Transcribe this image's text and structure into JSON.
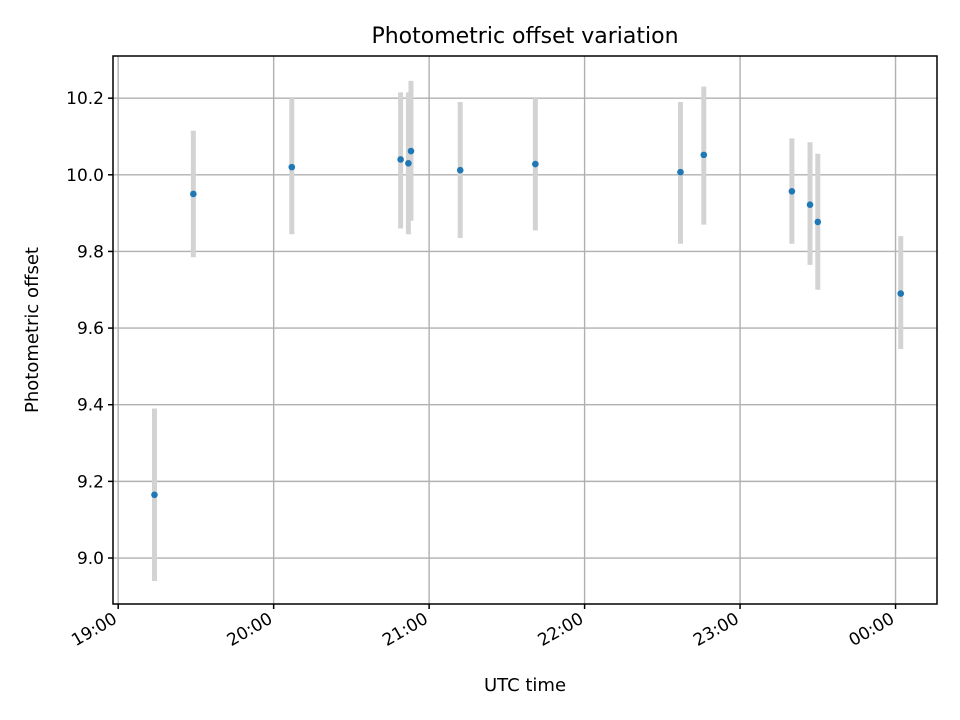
{
  "chart_data": {
    "type": "scatter",
    "title": "Photometric offset variation",
    "xlabel": "UTC time",
    "ylabel": "Photometric offset",
    "x_ticks": [
      {
        "t": "19:00",
        "label": "19:00"
      },
      {
        "t": "20:00",
        "label": "20:00"
      },
      {
        "t": "21:00",
        "label": "21:00"
      },
      {
        "t": "22:00",
        "label": "22:00"
      },
      {
        "t": "23:00",
        "label": "23:00"
      },
      {
        "t": "24:00",
        "label": "00:00"
      }
    ],
    "y_ticks": [
      "9.0",
      "9.2",
      "9.4",
      "9.6",
      "9.8",
      "10.0",
      "10.2"
    ],
    "xlim": [
      "18:58",
      "24:16"
    ],
    "ylim": [
      8.88,
      10.31
    ],
    "grid": true,
    "point_color": "#1f77b4",
    "errorbar_color": "#d3d3d3",
    "points": [
      {
        "t": "19:14",
        "y": 9.165,
        "lo": 8.94,
        "hi": 9.39
      },
      {
        "t": "19:29",
        "y": 9.95,
        "lo": 9.785,
        "hi": 10.115
      },
      {
        "t": "20:07",
        "y": 10.02,
        "lo": 9.845,
        "hi": 10.2
      },
      {
        "t": "20:49",
        "y": 10.04,
        "lo": 9.86,
        "hi": 10.215
      },
      {
        "t": "20:52",
        "y": 10.03,
        "lo": 9.845,
        "hi": 10.215
      },
      {
        "t": "20:53",
        "y": 10.062,
        "lo": 9.88,
        "hi": 10.245
      },
      {
        "t": "21:12",
        "y": 10.012,
        "lo": 9.835,
        "hi": 10.19
      },
      {
        "t": "21:41",
        "y": 10.028,
        "lo": 9.855,
        "hi": 10.2
      },
      {
        "t": "22:37",
        "y": 10.007,
        "lo": 9.82,
        "hi": 10.19
      },
      {
        "t": "22:46",
        "y": 10.052,
        "lo": 9.87,
        "hi": 10.23
      },
      {
        "t": "23:20",
        "y": 9.957,
        "lo": 9.82,
        "hi": 10.095
      },
      {
        "t": "23:27",
        "y": 9.922,
        "lo": 9.765,
        "hi": 10.085
      },
      {
        "t": "23:30",
        "y": 9.877,
        "lo": 9.7,
        "hi": 10.055
      },
      {
        "t": "24:02",
        "y": 9.69,
        "lo": 9.545,
        "hi": 9.84
      }
    ]
  }
}
